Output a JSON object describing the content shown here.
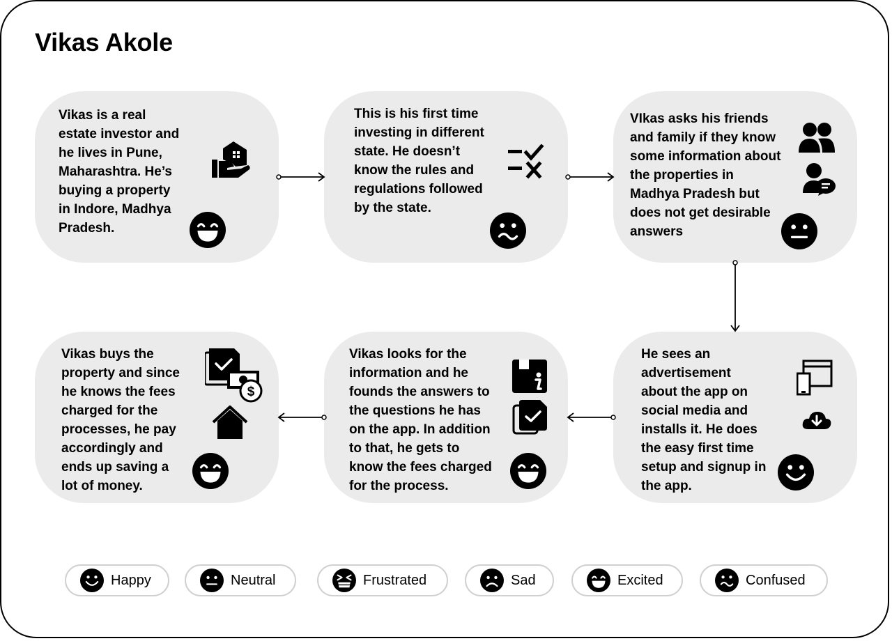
{
  "title": "Vikas Akole",
  "cards": [
    {
      "text": "Vikas is a real\nestate investor and\nhe lives in Pune,\nMaharashtra. He’s\nbuying a property\nin Indore, Madhya\nPradesh.",
      "icon": "house-in-hand-icon",
      "emotion": "Excited"
    },
    {
      "text": "This is his first time\ninvesting in different\nstate. He doesn’t\nknow the rules and\nregulations followed\nby the state.",
      "icon": "checklist-icon",
      "emotion": "Confused"
    },
    {
      "text": "VIkas asks his friends\nand family if they know\nsome information about\nthe properties in\nMadhya Pradesh but\ndoes not get desirable\nanswers",
      "icon": "people-chat-icon",
      "emotion": "Neutral"
    },
    {
      "text": "He sees an\nadvertisement\nabout the app on\nsocial media and\ninstalls it. He does\nthe easy first time\nsetup and signup in\nthe app.",
      "icon": "devices-download-icon",
      "emotion": "Happy"
    },
    {
      "text": "Vikas looks for the\ninformation and he\nfounds the answers to\nthe questions he has\non the app. In addition\nto that, he gets to\nknow the fees  charged\nfor the process.",
      "icon": "info-document-icon",
      "emotion": "Excited"
    },
    {
      "text": "Vikas buys the\nproperty and since\nhe knows the fees\ncharged for the\nprocesses, he pay\naccordingly and\nends up saving a\nlot of money.",
      "icon": "documents-money-house-icon",
      "emotion": "Excited"
    }
  ],
  "legend": [
    {
      "label": "Happy"
    },
    {
      "label": "Neutral"
    },
    {
      "label": "Frustrated"
    },
    {
      "label": "Sad"
    },
    {
      "label": "Excited"
    },
    {
      "label": "Confused"
    }
  ]
}
